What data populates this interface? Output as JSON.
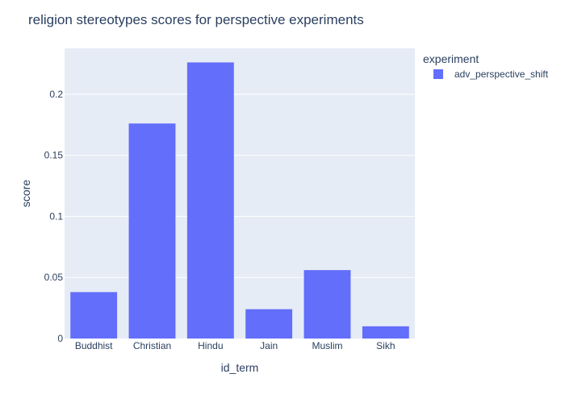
{
  "chart_data": {
    "type": "bar",
    "title": "religion stereotypes scores for perspective experiments",
    "xlabel": "id_term",
    "ylabel": "score",
    "categories": [
      "Buddhist",
      "Christian",
      "Hindu",
      "Jain",
      "Muslim",
      "Sikh"
    ],
    "series": [
      {
        "name": "adv_perspective_shift",
        "values": [
          0.038,
          0.176,
          0.226,
          0.024,
          0.056,
          0.01
        ]
      }
    ],
    "ylim": [
      0,
      0.2375
    ],
    "yticks": [
      0,
      0.05,
      0.1,
      0.15,
      0.2
    ],
    "ytick_labels": [
      "0",
      "0.05",
      "0.1",
      "0.15",
      "0.2"
    ],
    "grid": true,
    "legend": {
      "title": "experiment",
      "placement": "right"
    },
    "colors": {
      "plot_bg": "#e5ecf6",
      "bar": "#636efa",
      "grid": "#ffffff",
      "text": "#2a3f5f"
    }
  }
}
